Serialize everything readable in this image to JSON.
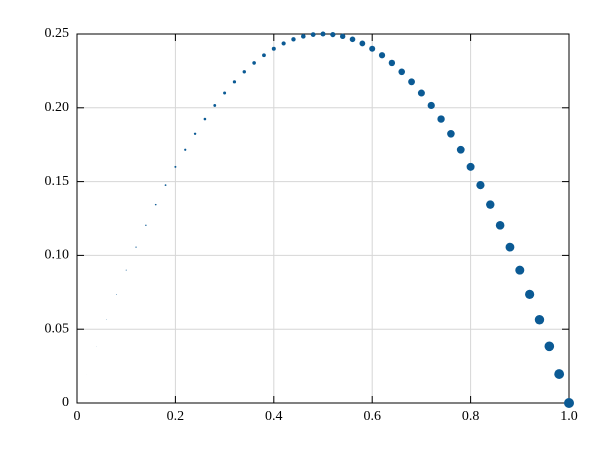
{
  "chart_data": {
    "type": "scatter",
    "color": "#0b5a94",
    "grid": true,
    "x": [
      0,
      0.02,
      0.04,
      0.06,
      0.08,
      0.1,
      0.12,
      0.14,
      0.16,
      0.18,
      0.2,
      0.22,
      0.24,
      0.26,
      0.28,
      0.3,
      0.32,
      0.34,
      0.36,
      0.38,
      0.4,
      0.42,
      0.44,
      0.46,
      0.48,
      0.5,
      0.52,
      0.54,
      0.56,
      0.58,
      0.6,
      0.62,
      0.64,
      0.66,
      0.68,
      0.7,
      0.72,
      0.74,
      0.76,
      0.78,
      0.8,
      0.82,
      0.84,
      0.86,
      0.88,
      0.9,
      0.92,
      0.94,
      0.96,
      0.98,
      1
    ],
    "values": [
      0,
      0.0196,
      0.0384,
      0.0564,
      0.0736,
      0.09,
      0.1056,
      0.1204,
      0.1344,
      0.1476,
      0.16,
      0.1716,
      0.1824,
      0.1924,
      0.2016,
      0.21,
      0.2176,
      0.2244,
      0.2304,
      0.2356,
      0.24,
      0.2436,
      0.2464,
      0.2484,
      0.2496,
      0.25,
      0.2496,
      0.2484,
      0.2464,
      0.2436,
      0.24,
      0.2356,
      0.2304,
      0.2244,
      0.2176,
      0.21,
      0.2016,
      0.1924,
      0.1824,
      0.1716,
      0.16,
      0.1476,
      0.1344,
      0.1204,
      0.1056,
      0.09,
      0.0736,
      0.0564,
      0.0384,
      0.0196,
      0
    ],
    "sizes": [
      0,
      0.02,
      0.04,
      0.06,
      0.08,
      0.1,
      0.12,
      0.14,
      0.16,
      0.18,
      0.2,
      0.22,
      0.24,
      0.26,
      0.28,
      0.3,
      0.32,
      0.34,
      0.36,
      0.38,
      0.4,
      0.42,
      0.44,
      0.46,
      0.48,
      0.5,
      0.52,
      0.54,
      0.56,
      0.58,
      0.6,
      0.62,
      0.64,
      0.66,
      0.68,
      0.7,
      0.72,
      0.74,
      0.76,
      0.78,
      0.8,
      0.82,
      0.84,
      0.86,
      0.88,
      0.9,
      0.92,
      0.94,
      0.96,
      0.98,
      1
    ],
    "xlim": [
      0,
      1
    ],
    "xticks": [
      0,
      0.2,
      0.4,
      0.6,
      0.8,
      {
        "value": 1,
        "label": "1.0"
      }
    ],
    "ylim": [
      0,
      0.25
    ],
    "yticks": [
      0,
      0.05,
      {
        "value": 0.1,
        "label": "0.10"
      },
      0.15,
      {
        "value": 0.2,
        "label": "0.20"
      },
      0.25
    ]
  }
}
